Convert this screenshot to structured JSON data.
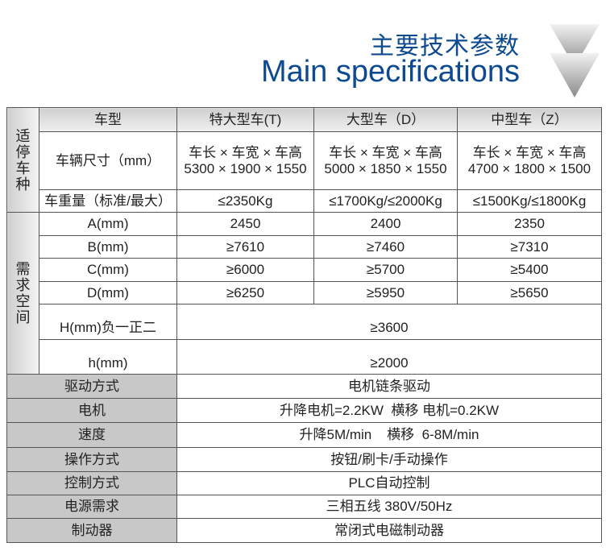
{
  "header": {
    "title_cn": "主要技术参数",
    "title_en": "Main specifications",
    "icon": "double-chevron-down-icon",
    "accent": "#0d4a8f"
  },
  "table": {
    "group1": "适停车种",
    "group2": "需求空间",
    "head": {
      "label": "车型",
      "cols": [
        "特大型车(T)",
        "大型车（D）",
        "中型车（Z）"
      ]
    },
    "size": {
      "label": "车辆尺寸（mm）",
      "line1": "车长 × 车宽 × 车高",
      "cols": [
        "5300 × 1900 × 1550",
        "5000 × 1850 × 1550",
        "4700 × 1800 × 1500"
      ]
    },
    "weight": {
      "label": "车重量（标准/最大）",
      "cols": [
        "≤2350Kg",
        "≤1700Kg/≤2000Kg",
        "≤1500Kg/≤1800Kg"
      ]
    },
    "dims": [
      {
        "label": "A(mm)",
        "cols": [
          "2450",
          "2400",
          "2350"
        ]
      },
      {
        "label": "B(mm)",
        "cols": [
          "≥7610",
          "≥7460",
          "≥7310"
        ]
      },
      {
        "label": "C(mm)",
        "cols": [
          "≥6000",
          "≥5700",
          "≥5400"
        ]
      },
      {
        "label": "D(mm)",
        "cols": [
          "≥6250",
          "≥5950",
          "≥5650"
        ]
      }
    ],
    "H": {
      "label": "H(mm)负一正二",
      "value": "≥3600"
    },
    "h": {
      "label": "h(mm)",
      "value": "≥2000"
    },
    "general": [
      {
        "label": "驱动方式",
        "value": "电机链条驱动"
      },
      {
        "label": "电机",
        "value": "升降电机=2.2KW  横移 电机=0.2KW"
      },
      {
        "label": "速度",
        "value": "升降5M/min    横移  6-8M/min"
      },
      {
        "label": "操作方式",
        "value": "按钮/刷卡/手动操作"
      },
      {
        "label": "控制方式",
        "value": "PLC自动控制"
      },
      {
        "label": "电源需求",
        "value": "三相五线 380V/50Hz"
      },
      {
        "label": "制动器",
        "value": "常闭式电磁制动器"
      }
    ]
  }
}
